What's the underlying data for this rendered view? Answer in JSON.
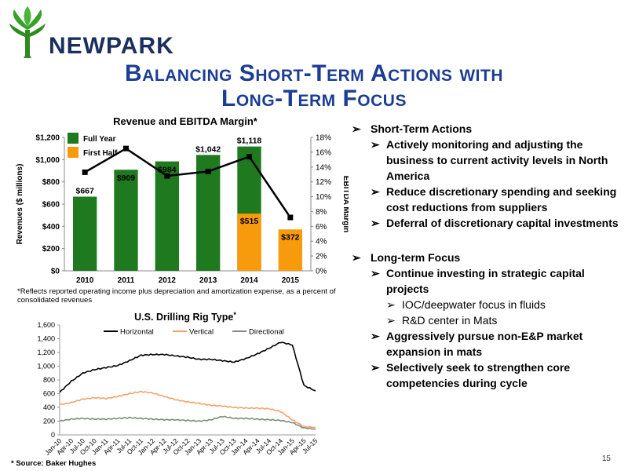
{
  "header": {
    "brand": "NEWPARK",
    "title_line1": "Balancing Short-Term Actions with",
    "title_line2": "Long-Term Focus",
    "colors": {
      "title": "#1b3d93",
      "brand_green": "#2e8b1f",
      "brand_navy": "#1b2f5e"
    }
  },
  "chart_data": [
    {
      "type": "bar",
      "title": "Revenue and EBITDA Margin*",
      "ylabel": "Revenues ($ millions)",
      "y2label": "EBITDA Margin",
      "categories": [
        "2010",
        "2011",
        "2012",
        "2013",
        "2014",
        "2015"
      ],
      "ylim": [
        0,
        1200
      ],
      "yticks": [
        "$0",
        "$200",
        "$400",
        "$600",
        "$800",
        "$1,000",
        "$1,200"
      ],
      "y2lim": [
        0,
        18
      ],
      "y2ticks": [
        "0%",
        "2%",
        "4%",
        "6%",
        "8%",
        "10%",
        "12%",
        "14%",
        "16%",
        "18%"
      ],
      "series": [
        {
          "name": "Full Year",
          "color": "#1f7a1f",
          "values": [
            667,
            909,
            984,
            1042,
            1118,
            null
          ],
          "labels": [
            "$667",
            "$909",
            "$984",
            "$1,042",
            "$1,118",
            ""
          ]
        },
        {
          "name": "First Half",
          "color": "#f79a0c",
          "values": [
            null,
            null,
            null,
            null,
            515,
            372
          ],
          "labels": [
            "",
            "",
            "",
            "",
            "$515",
            "$372"
          ]
        },
        {
          "name": "EBITDA Margin",
          "type": "line",
          "axis": "y2",
          "color": "#000000",
          "values": [
            13.3,
            16.5,
            12.8,
            13.4,
            15.4,
            7.2
          ]
        }
      ],
      "legend": "top-left",
      "footnote": "*Reflects reported operating income plus depreciation and amortization expense, as a percent of consolidated revenues"
    },
    {
      "type": "line",
      "title": "U.S. Drilling Rig Type",
      "title_mark": "*",
      "ylim": [
        0,
        1600
      ],
      "yticks": [
        "0",
        "200",
        "400",
        "600",
        "800",
        "1,000",
        "1,200",
        "1,400",
        "1,600"
      ],
      "x": [
        "Jan-10",
        "Apr-10",
        "Jul-10",
        "Oct-10",
        "Jan-11",
        "Apr-11",
        "Jul-11",
        "Oct-11",
        "Jan-12",
        "Apr-12",
        "Jul-12",
        "Oct-12",
        "Jan-13",
        "Apr-13",
        "Jul-13",
        "Oct-13",
        "Jan-14",
        "Apr-14",
        "Jul-14",
        "Oct-14",
        "Jan-15",
        "Apr-15",
        "Jul-15"
      ],
      "legend": "top",
      "series": [
        {
          "name": "Horizontal",
          "color": "#000000",
          "values": [
            620,
            780,
            900,
            950,
            980,
            1010,
            1080,
            1160,
            1170,
            1170,
            1150,
            1130,
            1100,
            1100,
            1080,
            1060,
            1110,
            1180,
            1260,
            1350,
            1310,
            720,
            640
          ]
        },
        {
          "name": "Vertical",
          "color": "#f4a26b",
          "values": [
            440,
            470,
            520,
            540,
            530,
            560,
            600,
            630,
            610,
            560,
            510,
            480,
            460,
            430,
            420,
            400,
            390,
            390,
            380,
            340,
            220,
            120,
            110
          ]
        },
        {
          "name": "Directional",
          "color": "#7a8d7a",
          "values": [
            200,
            230,
            240,
            230,
            230,
            240,
            250,
            240,
            230,
            220,
            220,
            210,
            200,
            220,
            270,
            240,
            240,
            230,
            220,
            210,
            180,
            100,
            85
          ]
        }
      ],
      "source": "* Source:  Baker Hughes"
    }
  ],
  "bullets": [
    {
      "level": 1,
      "text": "Short-Term Actions"
    },
    {
      "level": 2,
      "text": "Actively monitoring and adjusting the business to current activity levels in North America"
    },
    {
      "level": 2,
      "text": "Reduce discretionary spending and seeking cost reductions from suppliers"
    },
    {
      "level": 2,
      "text": "Deferral of discretionary capital investments"
    },
    {
      "level": 0,
      "text": ""
    },
    {
      "level": 1,
      "text": "Long-term Focus"
    },
    {
      "level": 2,
      "text": "Continue investing in strategic capital projects"
    },
    {
      "level": 3,
      "text": "IOC/deepwater focus in fluids"
    },
    {
      "level": 3,
      "text": "R&D center in Mats"
    },
    {
      "level": 2,
      "text": "Aggressively pursue non-E&P market expansion in mats"
    },
    {
      "level": 2,
      "text": "Selectively seek to strengthen core competencies during cycle"
    }
  ],
  "bullet_icon": "arrow-bullet-icon",
  "bullet_glyph": "➢",
  "footer": {
    "page_number": "15"
  }
}
